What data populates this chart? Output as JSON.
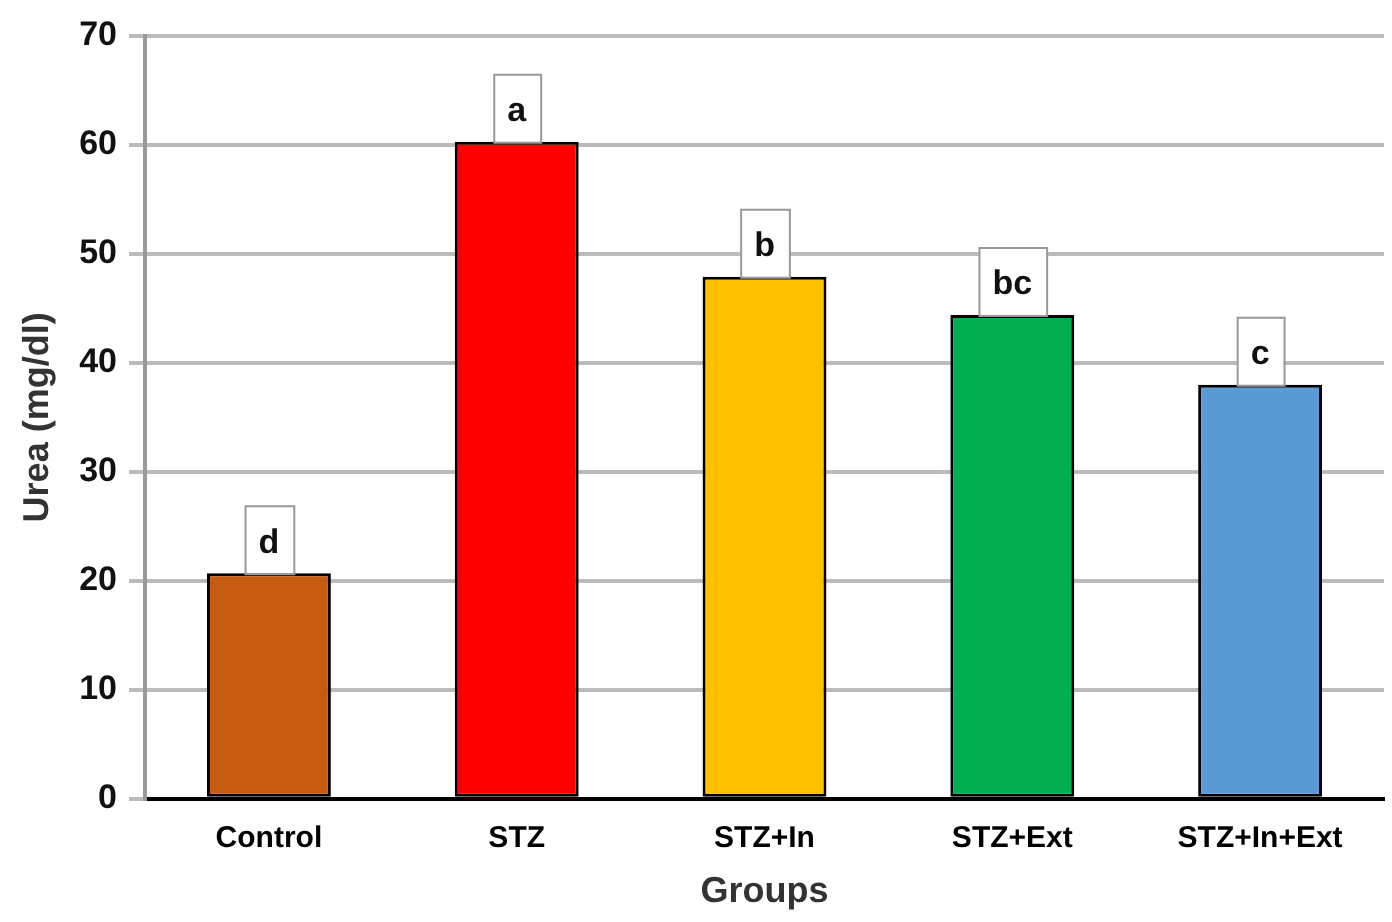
{
  "chart_data": {
    "type": "bar",
    "xlabel": "Groups",
    "ylabel": "Urea (mg/dl)",
    "categories": [
      "Control",
      "STZ",
      "STZ+In",
      "STZ+Ext",
      "STZ+In+Ext"
    ],
    "values": [
      20.7,
      60.3,
      47.9,
      44.4,
      38.0
    ],
    "colors": [
      "#c55a11",
      "#ff0000",
      "#ffc000",
      "#00b050",
      "#5b9bd5"
    ],
    "ylim": [
      0,
      70
    ],
    "yticks": [
      0,
      10,
      20,
      30,
      40,
      50,
      60,
      70
    ],
    "grid": "y",
    "annotations": [
      {
        "text": "d",
        "x": "Control",
        "y": 20.7
      },
      {
        "text": "a",
        "x": "STZ",
        "y": 60.3
      },
      {
        "text": "b",
        "x": "STZ+In",
        "y": 47.9
      },
      {
        "text": "bc",
        "x": "STZ+Ext",
        "y": 44.4
      },
      {
        "text": "c",
        "x": "STZ+In+Ext",
        "y": 38.0
      }
    ]
  }
}
